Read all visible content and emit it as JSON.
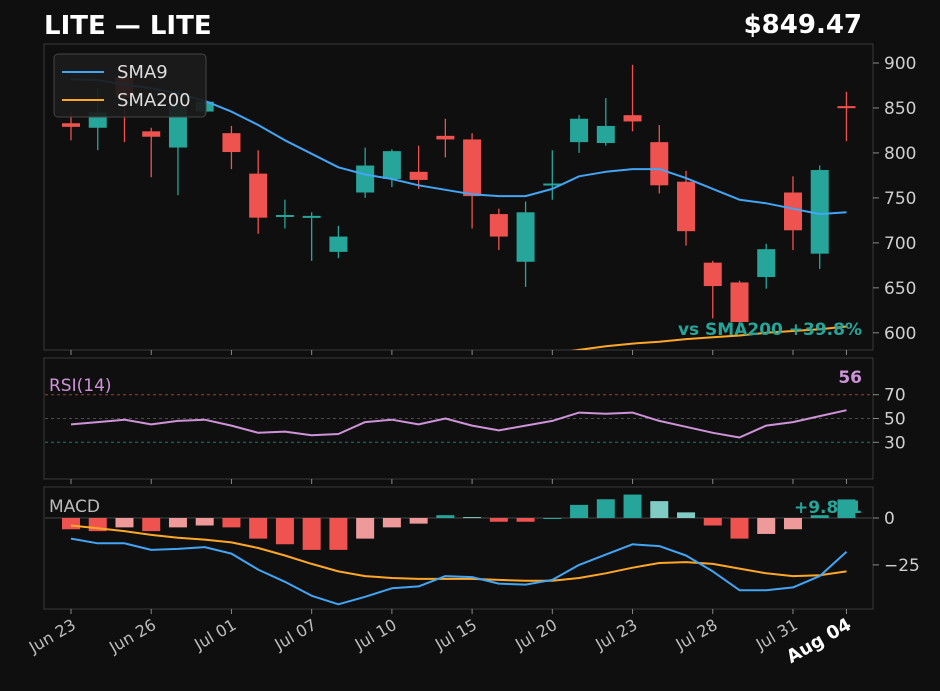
{
  "header": {
    "title": "LITE  —  LITE",
    "price": "$849.47"
  },
  "colors": {
    "background": "#0f0f0f",
    "up": "#26a69a",
    "down": "#ef5350",
    "sma9": "#42a5f5",
    "sma200": "#ffa726",
    "rsi": "#ce93d8",
    "macd": "#42a5f5",
    "signal": "#ffa726",
    "hist_up_strong": "#26a69a",
    "hist_up_weak": "#80cbc4",
    "hist_down_strong": "#ef5350",
    "hist_down_weak": "#ef9a9a"
  },
  "chart_data": [
    {
      "type": "candlestick",
      "panel": "price",
      "y_ticks": [
        600,
        650,
        700,
        750,
        800,
        850,
        900
      ],
      "ylim": [
        582,
        920
      ],
      "legend": {
        "placement": "top-left",
        "entries": [
          "SMA9",
          "SMA200"
        ]
      },
      "annotation": "vs SMA200  +39.8%",
      "x_labels": [
        "Jun 23",
        "Jun 26",
        "Jul 01",
        "Jul 07",
        "Jul 10",
        "Jul 15",
        "Jul 20",
        "Jul 23",
        "Jul 28",
        "Jul 31",
        "Aug 04"
      ],
      "x_label_indices": [
        0,
        3,
        6,
        9,
        12,
        15,
        18,
        21,
        24,
        27,
        29
      ],
      "candles": [
        {
          "o": 833,
          "h": 845,
          "l": 814,
          "c": 829
        },
        {
          "o": 828,
          "h": 872,
          "l": 803,
          "c": 845
        },
        {
          "o": 884,
          "h": 895,
          "l": 812,
          "c": 862
        },
        {
          "o": 824,
          "h": 828,
          "l": 773,
          "c": 818
        },
        {
          "o": 806,
          "h": 870,
          "l": 753,
          "c": 852
        },
        {
          "o": 846,
          "h": 858,
          "l": 841,
          "c": 857
        },
        {
          "o": 822,
          "h": 830,
          "l": 782,
          "c": 801
        },
        {
          "o": 777,
          "h": 803,
          "l": 710,
          "c": 728
        },
        {
          "o": 729,
          "h": 748,
          "l": 716,
          "c": 731
        },
        {
          "o": 730,
          "h": 734,
          "l": 680,
          "c": 730
        },
        {
          "o": 690,
          "h": 719,
          "l": 683,
          "c": 707
        },
        {
          "o": 756,
          "h": 806,
          "l": 750,
          "c": 786
        },
        {
          "o": 771,
          "h": 804,
          "l": 762,
          "c": 802
        },
        {
          "o": 779,
          "h": 808,
          "l": 760,
          "c": 770
        },
        {
          "o": 819,
          "h": 838,
          "l": 795,
          "c": 815
        },
        {
          "o": 815,
          "h": 822,
          "l": 716,
          "c": 752
        },
        {
          "o": 732,
          "h": 738,
          "l": 692,
          "c": 707
        },
        {
          "o": 679,
          "h": 746,
          "l": 651,
          "c": 734
        },
        {
          "o": 764,
          "h": 803,
          "l": 748,
          "c": 766
        },
        {
          "o": 812,
          "h": 842,
          "l": 800,
          "c": 838
        },
        {
          "o": 811,
          "h": 861,
          "l": 808,
          "c": 830
        },
        {
          "o": 842,
          "h": 898,
          "l": 824,
          "c": 835
        },
        {
          "o": 812,
          "h": 831,
          "l": 755,
          "c": 764
        },
        {
          "o": 768,
          "h": 780,
          "l": 697,
          "c": 713
        },
        {
          "o": 678,
          "h": 680,
          "l": 616,
          "c": 652
        },
        {
          "o": 656,
          "h": 658,
          "l": 600,
          "c": 612
        },
        {
          "o": 662,
          "h": 699,
          "l": 649,
          "c": 693
        },
        {
          "o": 756,
          "h": 774,
          "l": 692,
          "c": 714
        },
        {
          "o": 688,
          "h": 786,
          "l": 671,
          "c": 781
        },
        {
          "o": 852,
          "h": 868,
          "l": 813,
          "c": 850
        }
      ],
      "series": [
        {
          "name": "SMA9",
          "values": [
            882,
            881,
            876,
            872,
            866,
            858,
            846,
            831,
            814,
            799,
            784,
            776,
            771,
            764,
            759,
            754,
            752,
            752,
            760,
            774,
            779,
            782,
            782,
            772,
            760,
            748,
            744,
            738,
            732,
            734
          ]
        },
        {
          "name": "SMA200",
          "values": [
            null,
            null,
            null,
            null,
            null,
            null,
            null,
            null,
            null,
            null,
            null,
            null,
            null,
            null,
            null,
            null,
            null,
            573,
            577,
            581,
            585,
            588,
            590,
            593,
            595,
            597,
            600,
            602,
            604,
            607
          ]
        }
      ]
    },
    {
      "type": "line",
      "panel": "rsi",
      "label": "RSI(14)",
      "last_value_label": "56",
      "y_ticks": [
        30,
        50,
        70
      ],
      "ylim": [
        0,
        100
      ],
      "reference_lines": [
        30,
        50,
        70
      ],
      "series": [
        {
          "name": "RSI(14)",
          "values": [
            45,
            47,
            49,
            45,
            48,
            49,
            44,
            38,
            39,
            36,
            37,
            47,
            49,
            45,
            50,
            44,
            40,
            44,
            48,
            55,
            54,
            55,
            48,
            43,
            38,
            34,
            44,
            47,
            52,
            57
          ]
        }
      ]
    },
    {
      "type": "bar+line",
      "panel": "macd",
      "label": "MACD",
      "last_value_label": "+9.891",
      "y_ticks": [
        -25,
        0
      ],
      "ylim": [
        -48,
        16
      ],
      "histogram": [
        -6,
        -7,
        -5,
        -7,
        -5,
        -4,
        -5,
        -11,
        -14,
        -17,
        -17,
        -11,
        -5,
        -3,
        1.5,
        0.5,
        -2,
        -2,
        0,
        7,
        10,
        12.5,
        9,
        3,
        -4,
        -11,
        -8.5,
        -6,
        1.5,
        9.9
      ],
      "series": [
        {
          "name": "MACD",
          "values": [
            -11,
            -13.5,
            -13.5,
            -17,
            -16.5,
            -15.5,
            -19,
            -27.5,
            -34,
            -41.5,
            -46,
            -42,
            -37.5,
            -36.5,
            -31,
            -31.5,
            -35,
            -35.5,
            -33,
            -25,
            -19.5,
            -14,
            -15,
            -20,
            -28.5,
            -38.5,
            -38.5,
            -37,
            -31,
            -18
          ]
        },
        {
          "name": "Signal",
          "values": [
            -4,
            -5.5,
            -7,
            -9,
            -10.5,
            -11.5,
            -13,
            -16,
            -20,
            -24.5,
            -28.5,
            -31,
            -32,
            -32.5,
            -32.5,
            -32.5,
            -33,
            -33.5,
            -33.5,
            -32,
            -29.5,
            -26.5,
            -24,
            -23.5,
            -24.5,
            -27,
            -29.5,
            -31,
            -30.5,
            -28.5
          ]
        }
      ]
    }
  ]
}
